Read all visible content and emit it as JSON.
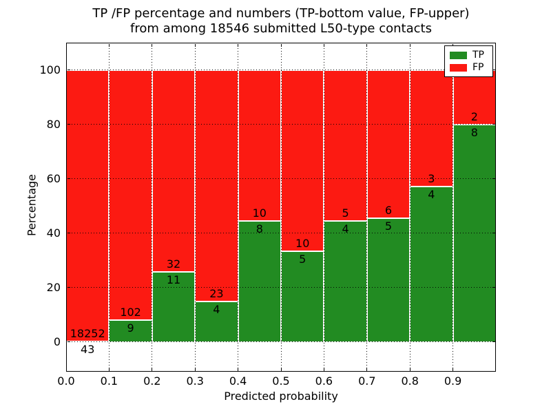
{
  "chart_data": {
    "type": "bar",
    "variant": "stacked-percentage-histogram",
    "title_line1": "TP /FP percentage and numbers (TP-bottom value, FP-upper)",
    "title_line2": "from among 18546 submitted L50-type contacts",
    "xlabel": "Predicted probability",
    "ylabel": "Percentage",
    "total_submitted": 18546,
    "bin_width": 0.1,
    "xlim": [
      0.0,
      1.0
    ],
    "ylim": [
      -11,
      110
    ],
    "xtick_labels": [
      "0.0",
      "0.1",
      "0.2",
      "0.3",
      "0.4",
      "0.5",
      "0.6",
      "0.7",
      "0.8",
      "0.9"
    ],
    "xtick_values": [
      0.0,
      0.1,
      0.2,
      0.3,
      0.4,
      0.5,
      0.6,
      0.7,
      0.8,
      0.9
    ],
    "ytick_labels": [
      "0",
      "20",
      "40",
      "60",
      "80",
      "100"
    ],
    "ytick_values": [
      0,
      20,
      40,
      60,
      80,
      100
    ],
    "grid": {
      "style": "dotted",
      "color": "#000000"
    },
    "colors": {
      "tp": "#228b22",
      "fp": "#fc1a12",
      "bar_edge": "#ffffff",
      "background": "#ffffff",
      "frame": "#000000",
      "text": "#000000"
    },
    "legend": {
      "position": "upper right",
      "entries": [
        {
          "label": "TP",
          "color": "#228b22"
        },
        {
          "label": "FP",
          "color": "#fc1a12"
        }
      ]
    },
    "bins": [
      {
        "x_range": [
          0.0,
          0.1
        ],
        "tp": 43,
        "fp": 18252,
        "tp_pct": 0.24,
        "fp_pct": 99.76
      },
      {
        "x_range": [
          0.1,
          0.2
        ],
        "tp": 9,
        "fp": 102,
        "tp_pct": 8.11,
        "fp_pct": 91.89
      },
      {
        "x_range": [
          0.2,
          0.3
        ],
        "tp": 11,
        "fp": 32,
        "tp_pct": 25.58,
        "fp_pct": 74.42
      },
      {
        "x_range": [
          0.3,
          0.4
        ],
        "tp": 4,
        "fp": 23,
        "tp_pct": 14.81,
        "fp_pct": 85.19
      },
      {
        "x_range": [
          0.4,
          0.5
        ],
        "tp": 8,
        "fp": 10,
        "tp_pct": 44.44,
        "fp_pct": 55.56
      },
      {
        "x_range": [
          0.5,
          0.6
        ],
        "tp": 5,
        "fp": 10,
        "tp_pct": 33.33,
        "fp_pct": 66.67
      },
      {
        "x_range": [
          0.6,
          0.7
        ],
        "tp": 4,
        "fp": 5,
        "tp_pct": 44.44,
        "fp_pct": 55.56
      },
      {
        "x_range": [
          0.7,
          0.8
        ],
        "tp": 5,
        "fp": 6,
        "tp_pct": 45.45,
        "fp_pct": 54.55
      },
      {
        "x_range": [
          0.8,
          0.9
        ],
        "tp": 4,
        "fp": 3,
        "tp_pct": 57.14,
        "fp_pct": 42.86
      },
      {
        "x_range": [
          0.9,
          1.0
        ],
        "tp": 8,
        "fp": 2,
        "tp_pct": 80.0,
        "fp_pct": 20.0
      }
    ]
  }
}
